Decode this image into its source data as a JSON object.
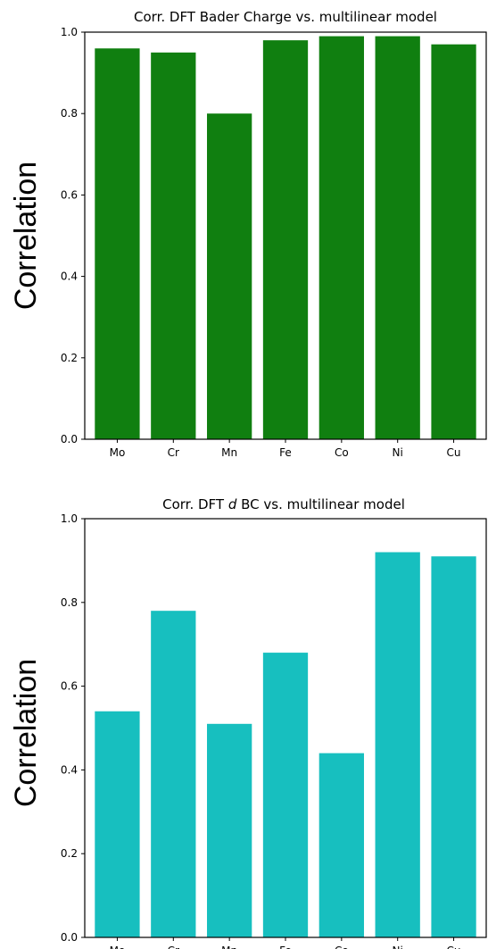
{
  "chart_data": [
    {
      "type": "bar",
      "title": "Corr. DFT Bader Charge vs. multilinear model",
      "title_italic_part": "",
      "ylabel": "Correlation",
      "xlabel": "",
      "categories": [
        "Mo",
        "Cr",
        "Mn",
        "Fe",
        "Co",
        "Ni",
        "Cu"
      ],
      "values": [
        0.96,
        0.95,
        0.8,
        0.98,
        0.99,
        0.99,
        0.97
      ],
      "ylim": [
        0,
        1.0
      ],
      "yticks": [
        "0.0",
        "0.2",
        "0.4",
        "0.6",
        "0.8",
        "1.0"
      ],
      "grid": false,
      "bar_color": "#107f10"
    },
    {
      "type": "bar",
      "title_prefix": "Corr. DFT ",
      "title_italic": "d",
      "title_suffix": " BC vs. multilinear model",
      "ylabel": "Correlation",
      "xlabel": "",
      "categories": [
        "Mo",
        "Cr",
        "Mn",
        "Fe",
        "Co",
        "Ni",
        "Cu"
      ],
      "values": [
        0.54,
        0.78,
        0.51,
        0.68,
        0.44,
        0.92,
        0.91
      ],
      "ylim": [
        0,
        1.0
      ],
      "yticks": [
        "0.0",
        "0.2",
        "0.4",
        "0.6",
        "0.8",
        "1.0"
      ],
      "grid": false,
      "bar_color": "#17bfbf"
    }
  ]
}
